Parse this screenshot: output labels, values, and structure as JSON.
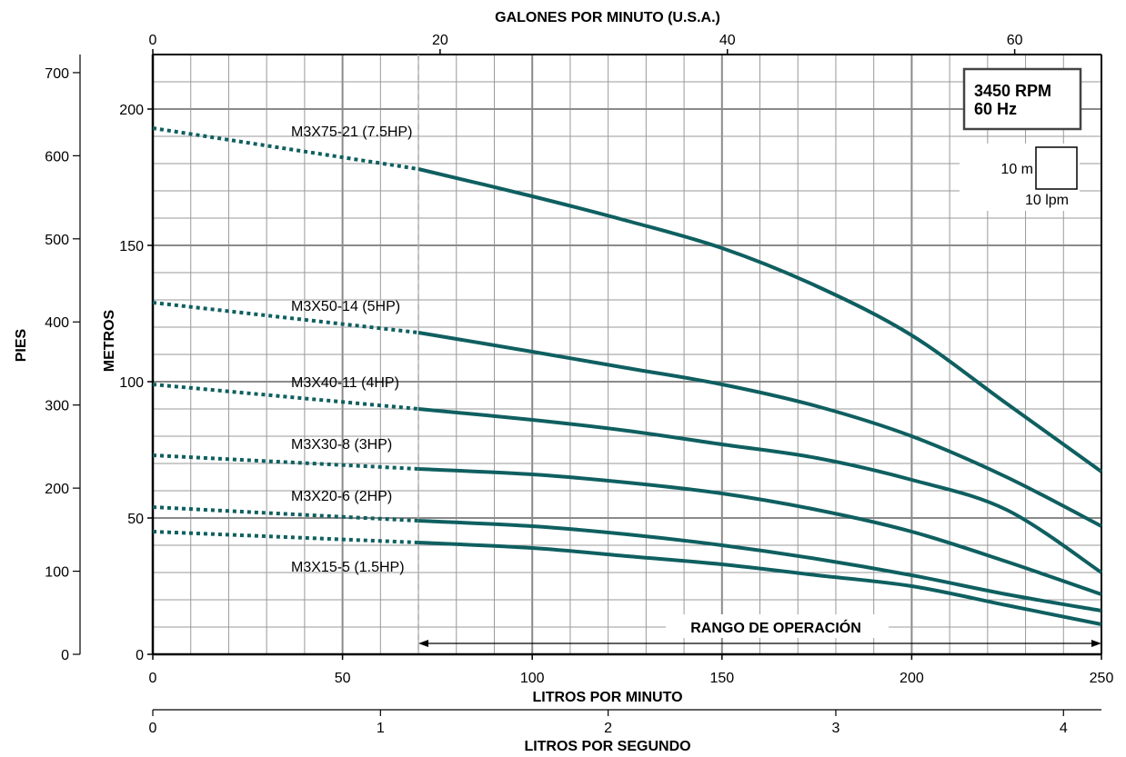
{
  "chart_data": {
    "type": "line",
    "axes": {
      "x_bottom": {
        "label": "LITROS POR MINUTO",
        "range": [
          0,
          250
        ],
        "ticks": [
          0,
          50,
          100,
          150,
          200,
          250
        ]
      },
      "x_bottom2": {
        "label": "LITROS POR SEGUNDO",
        "range": [
          0,
          4.1667
        ],
        "ticks": [
          0,
          1,
          2,
          3,
          4
        ]
      },
      "x_top": {
        "label": "GALONES POR MINUTO (U.S.A.)",
        "range": [
          0,
          66.04
        ],
        "ticks": [
          0,
          20,
          40,
          60
        ]
      },
      "y_metros": {
        "label": "METROS",
        "range": [
          0,
          220
        ],
        "ticks": [
          0,
          50,
          100,
          150,
          200
        ]
      },
      "y_pies": {
        "label": "PIES",
        "range": [
          0,
          721.8
        ],
        "ticks": [
          0,
          100,
          200,
          300,
          400,
          500,
          600,
          700
        ]
      }
    },
    "grid": true,
    "operating_range_start_lpm": 70,
    "annotations": {
      "rpm_box": [
        "3450 RPM",
        "60 Hz"
      ],
      "scale_box_y": "10 m",
      "scale_box_x": "10 lpm",
      "operating_range_label": "RANGO DE OPERACIÓN"
    },
    "series": [
      {
        "name": "M3X75-21 (7.5HP)",
        "x": [
          0,
          70,
          100,
          125,
          150,
          175,
          200,
          225,
          250
        ],
        "y": [
          193,
          178,
          168,
          159,
          149,
          135,
          117,
          92,
          67
        ]
      },
      {
        "name": "M3X50-14 (5HP)",
        "x": [
          0,
          70,
          100,
          125,
          150,
          175,
          200,
          225,
          250
        ],
        "y": [
          129,
          118,
          111,
          105,
          99,
          91,
          80,
          65,
          47
        ]
      },
      {
        "name": "M3X40-11 (4HP)",
        "x": [
          0,
          70,
          100,
          125,
          150,
          175,
          200,
          225,
          250
        ],
        "y": [
          99,
          90,
          86,
          82,
          77,
          72,
          64,
          53,
          30
        ]
      },
      {
        "name": "M3X30-8 (3HP)",
        "x": [
          0,
          70,
          100,
          125,
          150,
          175,
          200,
          225,
          250
        ],
        "y": [
          73,
          68,
          66,
          63,
          59,
          53,
          45,
          34,
          22
        ]
      },
      {
        "name": "M3X20-6 (2HP)",
        "x": [
          0,
          70,
          100,
          125,
          150,
          175,
          200,
          225,
          250
        ],
        "y": [
          54,
          49,
          47,
          44,
          40,
          35,
          29,
          22,
          16
        ]
      },
      {
        "name": "M3X15-5 (1.5HP)",
        "x": [
          0,
          70,
          100,
          125,
          150,
          175,
          200,
          225,
          250
        ],
        "y": [
          45,
          41,
          39,
          36,
          33,
          29,
          25,
          18,
          11
        ]
      }
    ],
    "colors": {
      "curve": "#0f5f60",
      "grid": "#9a9a9a"
    }
  }
}
